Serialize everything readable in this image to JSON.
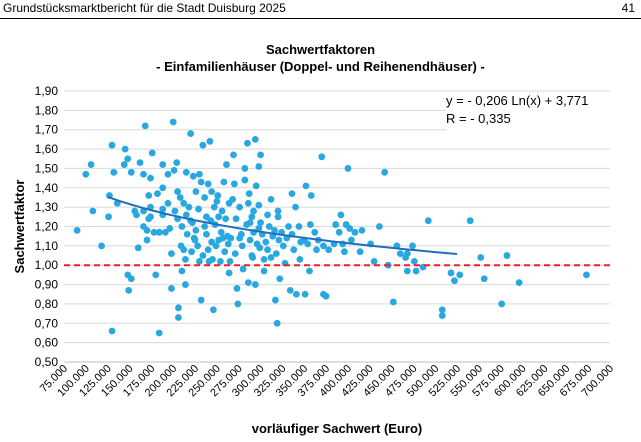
{
  "page": {
    "header_title": "Grundstücksmarktbericht für die Stadt Duisburg 2025",
    "page_number": "41"
  },
  "chart_data": {
    "type": "scatter",
    "title": "Sachwertfaktoren",
    "subtitle": "- Einfamilienhäuser (Doppel- und Reihenendhäuser) -",
    "xlabel": "vorläufiger Sachwert (Euro)",
    "ylabel": "Sachwertfaktor",
    "xlim": [
      75000,
      700000
    ],
    "ylim": [
      0.5,
      1.9
    ],
    "x_ticks": [
      "75.000",
      "100.000",
      "125.000",
      "150.000",
      "175.000",
      "200.000",
      "225.000",
      "250.000",
      "275.000",
      "300.000",
      "325.000",
      "350.000",
      "375.000",
      "400.000",
      "425.000",
      "450.000",
      "475.000",
      "500.000",
      "525.000",
      "550.000",
      "575.000",
      "600.000",
      "625.000",
      "650.000",
      "675.000",
      "700.000"
    ],
    "y_ticks": [
      "0,50",
      "0,60",
      "0,70",
      "0,80",
      "0,90",
      "1,00",
      "1,10",
      "1,20",
      "1,30",
      "1,40",
      "1,50",
      "1,60",
      "1,70",
      "1,80",
      "1,90"
    ],
    "point_color": "#29a8e0",
    "trend_color": "#1f6fbd",
    "reference_color": "#e8202a",
    "grid": "horizontal",
    "reference_line": {
      "y": 1.0,
      "style": "dashed"
    },
    "trendline": {
      "type": "logarithmic",
      "equation": "y = - 0,206 Ln(x) + 3,771",
      "r": "R = - 0,335",
      "x_range": [
        125000,
        525000
      ]
    },
    "points": [
      [
        90000,
        1.18
      ],
      [
        100000,
        1.47
      ],
      [
        106000,
        1.52
      ],
      [
        108000,
        1.28
      ],
      [
        118000,
        1.1
      ],
      [
        126000,
        1.25
      ],
      [
        127000,
        1.36
      ],
      [
        130000,
        1.62
      ],
      [
        130000,
        0.66
      ],
      [
        132000,
        1.48
      ],
      [
        136000,
        1.32
      ],
      [
        144000,
        1.52
      ],
      [
        145000,
        1.6
      ],
      [
        148000,
        1.55
      ],
      [
        148000,
        0.95
      ],
      [
        149000,
        0.87
      ],
      [
        152000,
        1.48
      ],
      [
        156000,
        1.28
      ],
      [
        152000,
        0.93
      ],
      [
        158000,
        1.26
      ],
      [
        160000,
        1.09
      ],
      [
        162000,
        1.53
      ],
      [
        166000,
        1.47
      ],
      [
        166000,
        1.28
      ],
      [
        166000,
        1.2
      ],
      [
        168000,
        1.72
      ],
      [
        170000,
        1.18
      ],
      [
        170000,
        1.13
      ],
      [
        172000,
        1.36
      ],
      [
        172000,
        1.24
      ],
      [
        174000,
        1.45
      ],
      [
        174000,
        1.3
      ],
      [
        174000,
        1.25
      ],
      [
        176000,
        1.58
      ],
      [
        178000,
        1.17
      ],
      [
        180000,
        0.95
      ],
      [
        182000,
        1.37
      ],
      [
        184000,
        1.17
      ],
      [
        184000,
        0.65
      ],
      [
        188000,
        1.52
      ],
      [
        188000,
        1.4
      ],
      [
        188000,
        1.29
      ],
      [
        188000,
        1.26
      ],
      [
        191000,
        1.17
      ],
      [
        194000,
        1.47
      ],
      [
        194000,
        1.32
      ],
      [
        196000,
        1.19
      ],
      [
        198000,
        1.06
      ],
      [
        198000,
        0.88
      ],
      [
        200000,
        1.74
      ],
      [
        201000,
        1.49
      ],
      [
        202000,
        1.28
      ],
      [
        204000,
        1.53
      ],
      [
        205000,
        1.38
      ],
      [
        205000,
        1.24
      ],
      [
        206000,
        0.73
      ],
      [
        206000,
        0.78
      ],
      [
        208000,
        1.35
      ],
      [
        209000,
        1.1
      ],
      [
        210000,
        1.2
      ],
      [
        210000,
        0.97
      ],
      [
        212000,
        1.32
      ],
      [
        212000,
        1.08
      ],
      [
        214000,
        1.03
      ],
      [
        214000,
        0.9
      ],
      [
        215000,
        1.48
      ],
      [
        215000,
        1.26
      ],
      [
        216000,
        1.16
      ],
      [
        218000,
        1.3
      ],
      [
        220000,
        1.68
      ],
      [
        220000,
        1.23
      ],
      [
        221000,
        1.07
      ],
      [
        222000,
        1.22
      ],
      [
        223000,
        1.46
      ],
      [
        224000,
        1.14
      ],
      [
        225000,
        1.13
      ],
      [
        226000,
        1.38
      ],
      [
        226000,
        1.18
      ],
      [
        228000,
        1.1
      ],
      [
        229000,
        1.29
      ],
      [
        230000,
        1.47
      ],
      [
        230000,
        1.02
      ],
      [
        232000,
        1.43
      ],
      [
        232000,
        0.82
      ],
      [
        234000,
        1.62
      ],
      [
        234000,
        1.05
      ],
      [
        236000,
        1.35
      ],
      [
        236000,
        1.2
      ],
      [
        238000,
        1.25
      ],
      [
        238000,
        1.16
      ],
      [
        240000,
        1.42
      ],
      [
        240000,
        1.08
      ],
      [
        241000,
        1.02
      ],
      [
        242000,
        1.64
      ],
      [
        243000,
        1.23
      ],
      [
        244000,
        1.38
      ],
      [
        244000,
        1.12
      ],
      [
        245000,
        1.03
      ],
      [
        246000,
        0.77
      ],
      [
        247000,
        1.3
      ],
      [
        248000,
        1.21
      ],
      [
        249000,
        1.1
      ],
      [
        250000,
        1.33
      ],
      [
        251000,
        1.36
      ],
      [
        252000,
        1.25
      ],
      [
        252000,
        1.13
      ],
      [
        254000,
        1.02
      ],
      [
        255000,
        1.17
      ],
      [
        256000,
        1.28
      ],
      [
        257000,
        1.14
      ],
      [
        258000,
        1.43
      ],
      [
        259000,
        1.07
      ],
      [
        260000,
        1.24
      ],
      [
        261000,
        1.52
      ],
      [
        262000,
        1.15
      ],
      [
        263000,
        1.11
      ],
      [
        264000,
        1.32
      ],
      [
        264000,
        0.96
      ],
      [
        265000,
        1.02
      ],
      [
        266000,
        1.14
      ],
      [
        268000,
        1.34
      ],
      [
        269000,
        1.57
      ],
      [
        270000,
        1.42
      ],
      [
        271000,
        1.06
      ],
      [
        272000,
        1.24
      ],
      [
        273000,
        0.88
      ],
      [
        274000,
        0.8
      ],
      [
        276000,
        1.3
      ],
      [
        276000,
        1.14
      ],
      [
        278000,
        1.16
      ],
      [
        279000,
        1.1
      ],
      [
        280000,
        0.98
      ],
      [
        282000,
        1.5
      ],
      [
        282000,
        1.44
      ],
      [
        284000,
        1.21
      ],
      [
        285000,
        1.63
      ],
      [
        286000,
        1.32
      ],
      [
        286000,
        0.91
      ],
      [
        287000,
        1.37
      ],
      [
        288000,
        1.22
      ],
      [
        288000,
        1.13
      ],
      [
        290000,
        1.25
      ],
      [
        290000,
        1.05
      ],
      [
        291000,
        1.04
      ],
      [
        292000,
        1.28
      ],
      [
        292000,
        1.17
      ],
      [
        294000,
        1.65
      ],
      [
        294000,
        0.9
      ],
      [
        295000,
        1.41
      ],
      [
        296000,
        1.11
      ],
      [
        298000,
        1.51
      ],
      [
        298000,
        1.31
      ],
      [
        298000,
        1.19
      ],
      [
        299000,
        1.09
      ],
      [
        300000,
        1.57
      ],
      [
        300000,
        1.22
      ],
      [
        302000,
        1.16
      ],
      [
        304000,
        1.03
      ],
      [
        304000,
        0.97
      ],
      [
        306000,
        1.12
      ],
      [
        308000,
        1.26
      ],
      [
        308000,
        1.08
      ],
      [
        310000,
        1.2
      ],
      [
        312000,
        1.34
      ],
      [
        312000,
        1.04
      ],
      [
        314000,
        1.15
      ],
      [
        316000,
        1.18
      ],
      [
        317000,
        0.82
      ],
      [
        318000,
        1.06
      ],
      [
        319000,
        0.7
      ],
      [
        320000,
        1.28
      ],
      [
        320000,
        1.25
      ],
      [
        321000,
        1.13
      ],
      [
        322000,
        0.93
      ],
      [
        324000,
        1.17
      ],
      [
        326000,
        1.1
      ],
      [
        328000,
        1.01
      ],
      [
        330000,
        1.14
      ],
      [
        332000,
        1.2
      ],
      [
        334000,
        0.87
      ],
      [
        336000,
        1.37
      ],
      [
        336000,
        1.16
      ],
      [
        338000,
        1.08
      ],
      [
        340000,
        1.3
      ],
      [
        341000,
        0.85
      ],
      [
        344000,
        1.2
      ],
      [
        345000,
        1.03
      ],
      [
        346000,
        1.12
      ],
      [
        350000,
        1.13
      ],
      [
        351000,
        0.85
      ],
      [
        352000,
        1.41
      ],
      [
        354000,
        1.11
      ],
      [
        356000,
        0.97
      ],
      [
        357000,
        1.21
      ],
      [
        358000,
        1.36
      ],
      [
        362000,
        1.17
      ],
      [
        364000,
        1.08
      ],
      [
        366000,
        1.13
      ],
      [
        370000,
        1.56
      ],
      [
        372000,
        1.1
      ],
      [
        372000,
        0.85
      ],
      [
        375000,
        0.84
      ],
      [
        378000,
        1.08
      ],
      [
        384000,
        1.11
      ],
      [
        386000,
        1.21
      ],
      [
        390000,
        1.17
      ],
      [
        392000,
        1.26
      ],
      [
        394000,
        1.11
      ],
      [
        396000,
        1.07
      ],
      [
        398000,
        1.21
      ],
      [
        400000,
        1.5
      ],
      [
        402000,
        1.19
      ],
      [
        404000,
        1.13
      ],
      [
        408000,
        1.17
      ],
      [
        414000,
        1.07
      ],
      [
        416000,
        1.18
      ],
      [
        426000,
        1.11
      ],
      [
        430000,
        1.02
      ],
      [
        436000,
        1.2
      ],
      [
        442000,
        1.48
      ],
      [
        446000,
        1.0
      ],
      [
        452000,
        0.81
      ],
      [
        456000,
        1.1
      ],
      [
        460000,
        1.06
      ],
      [
        466000,
        1.04
      ],
      [
        468000,
        1.06
      ],
      [
        468000,
        0.97
      ],
      [
        474000,
        1.1
      ],
      [
        476000,
        1.02
      ],
      [
        478000,
        0.97
      ],
      [
        486000,
        0.99
      ],
      [
        492000,
        1.23
      ],
      [
        508000,
        0.77
      ],
      [
        508000,
        0.74
      ],
      [
        518000,
        0.96
      ],
      [
        522000,
        0.92
      ],
      [
        528000,
        0.95
      ],
      [
        540000,
        1.23
      ],
      [
        552000,
        1.04
      ],
      [
        556000,
        0.93
      ],
      [
        576000,
        0.8
      ],
      [
        582000,
        1.05
      ],
      [
        596000,
        0.91
      ],
      [
        673000,
        0.95
      ]
    ]
  }
}
